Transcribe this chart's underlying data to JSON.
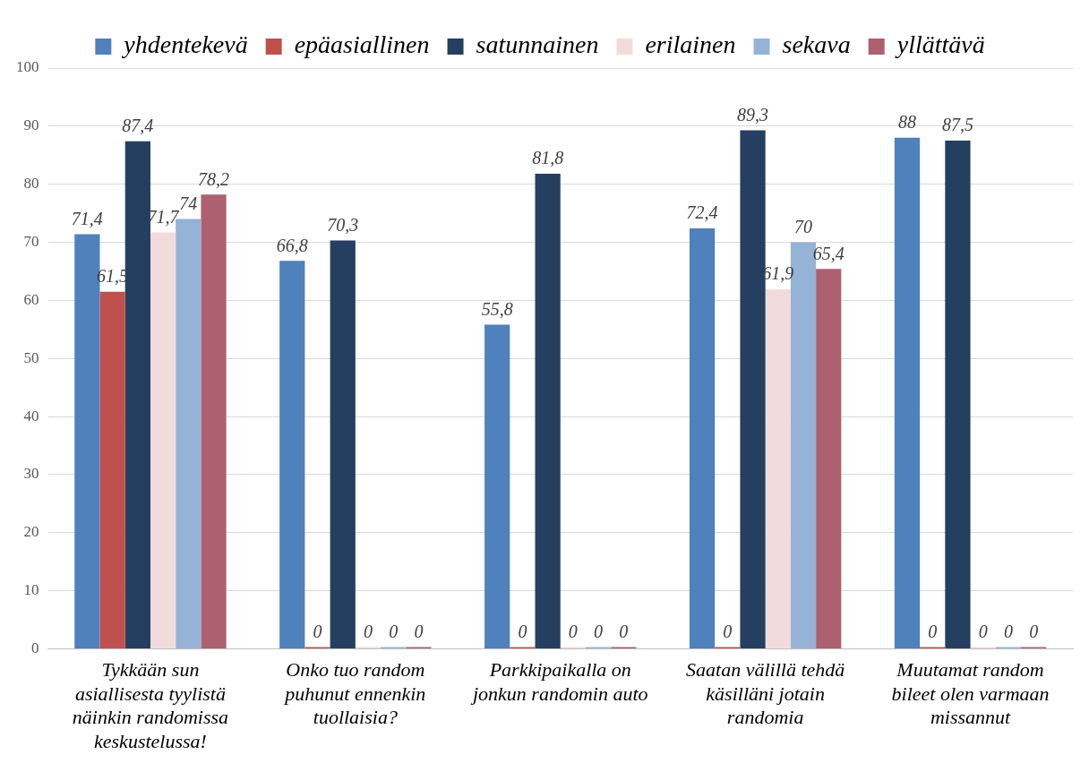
{
  "chart_data": {
    "type": "bar",
    "categories": [
      "Tykkään sun asiallisesta tyylistä näinkin randomissa keskustelussa!",
      "Onko tuo random puhunut ennenkin tuollaisia?",
      "Parkkipaikalla on jonkun randomin auto",
      "Saatan välillä tehdä käsilläni jotain randomia",
      "Muutamat random bileet olen varmaan missannut"
    ],
    "series": [
      {
        "name": "yhdentekevä",
        "color": "#4f81bd",
        "values": [
          71.4,
          66.8,
          55.8,
          72.4,
          88
        ],
        "value_labels": [
          "71,4",
          "66,8",
          "55,8",
          "72,4",
          "88"
        ]
      },
      {
        "name": "epäasiallinen",
        "color": "#c0504d",
        "values": [
          61.5,
          0,
          0,
          0,
          0
        ],
        "value_labels": [
          "61,5",
          "0",
          "0",
          "0",
          "0"
        ]
      },
      {
        "name": "satunnainen",
        "color": "#243f60",
        "values": [
          87.4,
          70.3,
          81.8,
          89.3,
          87.5
        ],
        "value_labels": [
          "87,4",
          "70,3",
          "81,8",
          "89,3",
          "87,5"
        ]
      },
      {
        "name": "erilainen",
        "color": "#f2dcdb",
        "values": [
          71.7,
          0,
          0,
          61.9,
          0
        ],
        "value_labels": [
          "71,7",
          "0",
          "0",
          "61,9",
          "0"
        ]
      },
      {
        "name": "sekava",
        "color": "#95b3d7",
        "values": [
          74,
          0,
          0,
          70,
          0
        ],
        "value_labels": [
          "74",
          "0",
          "0",
          "70",
          "0"
        ]
      },
      {
        "name": "yllättävä",
        "color": "#ad6070",
        "values": [
          78.2,
          0,
          0,
          65.4,
          0
        ],
        "value_labels": [
          "78,2",
          "0",
          "0",
          "65,4",
          "0"
        ]
      }
    ],
    "ylim": [
      0,
      100
    ],
    "yticks": [
      0,
      10,
      20,
      30,
      40,
      50,
      60,
      70,
      80,
      90,
      100
    ],
    "grid": "y",
    "legend": "top"
  }
}
